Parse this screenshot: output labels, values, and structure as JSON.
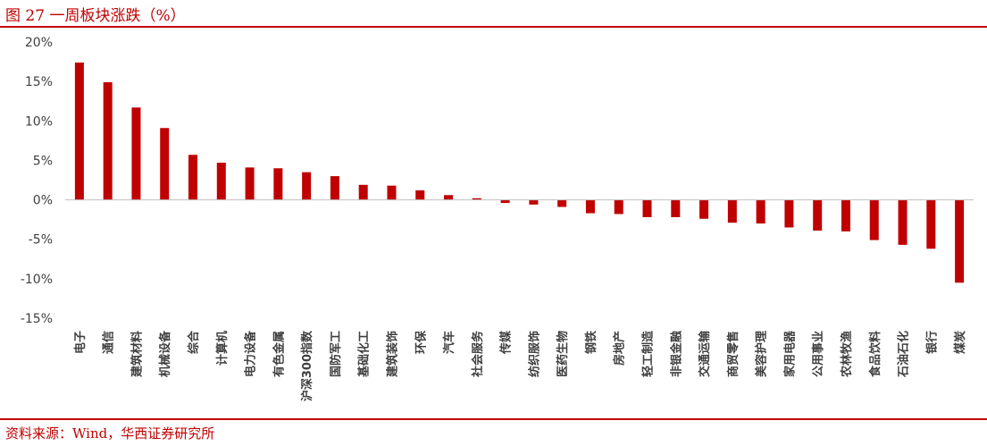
{
  "figure": {
    "title": "图 27 一周板块涨跌（%）",
    "source": "资料来源：Wind，华西证券研究所"
  },
  "chart_data": {
    "type": "bar",
    "title": "",
    "xlabel": "",
    "ylabel": "",
    "ylim": [
      -15,
      20
    ],
    "yticks": [
      20,
      15,
      10,
      5,
      0,
      -5,
      -10,
      -15
    ],
    "ytick_labels": [
      "20%",
      "15%",
      "10%",
      "5%",
      "0%",
      "-5%",
      "-10%",
      "-15%"
    ],
    "grid": false,
    "legend": "none",
    "bar_color": "#c00000",
    "categories": [
      "电子",
      "通信",
      "建筑材料",
      "机械设备",
      "综合",
      "计算机",
      "电力设备",
      "有色金属",
      "沪深300指数",
      "国防军工",
      "基础化工",
      "建筑装饰",
      "环保",
      "汽车",
      "社会服务",
      "传媒",
      "纺织服饰",
      "医药生物",
      "钢铁",
      "房地产",
      "轻工制造",
      "非银金融",
      "交通运输",
      "商贸零售",
      "美容护理",
      "家用电器",
      "公用事业",
      "农林牧渔",
      "食品饮料",
      "石油石化",
      "银行",
      "煤炭"
    ],
    "values": [
      17.4,
      14.9,
      11.7,
      9.1,
      5.7,
      4.7,
      4.1,
      4.0,
      3.5,
      3.0,
      1.9,
      1.8,
      1.2,
      0.6,
      0.2,
      -0.4,
      -0.6,
      -0.9,
      -1.7,
      -1.8,
      -2.2,
      -2.2,
      -2.4,
      -2.9,
      -3.0,
      -3.5,
      -3.9,
      -4.0,
      -5.1,
      -5.7,
      -6.2,
      -10.5
    ]
  }
}
